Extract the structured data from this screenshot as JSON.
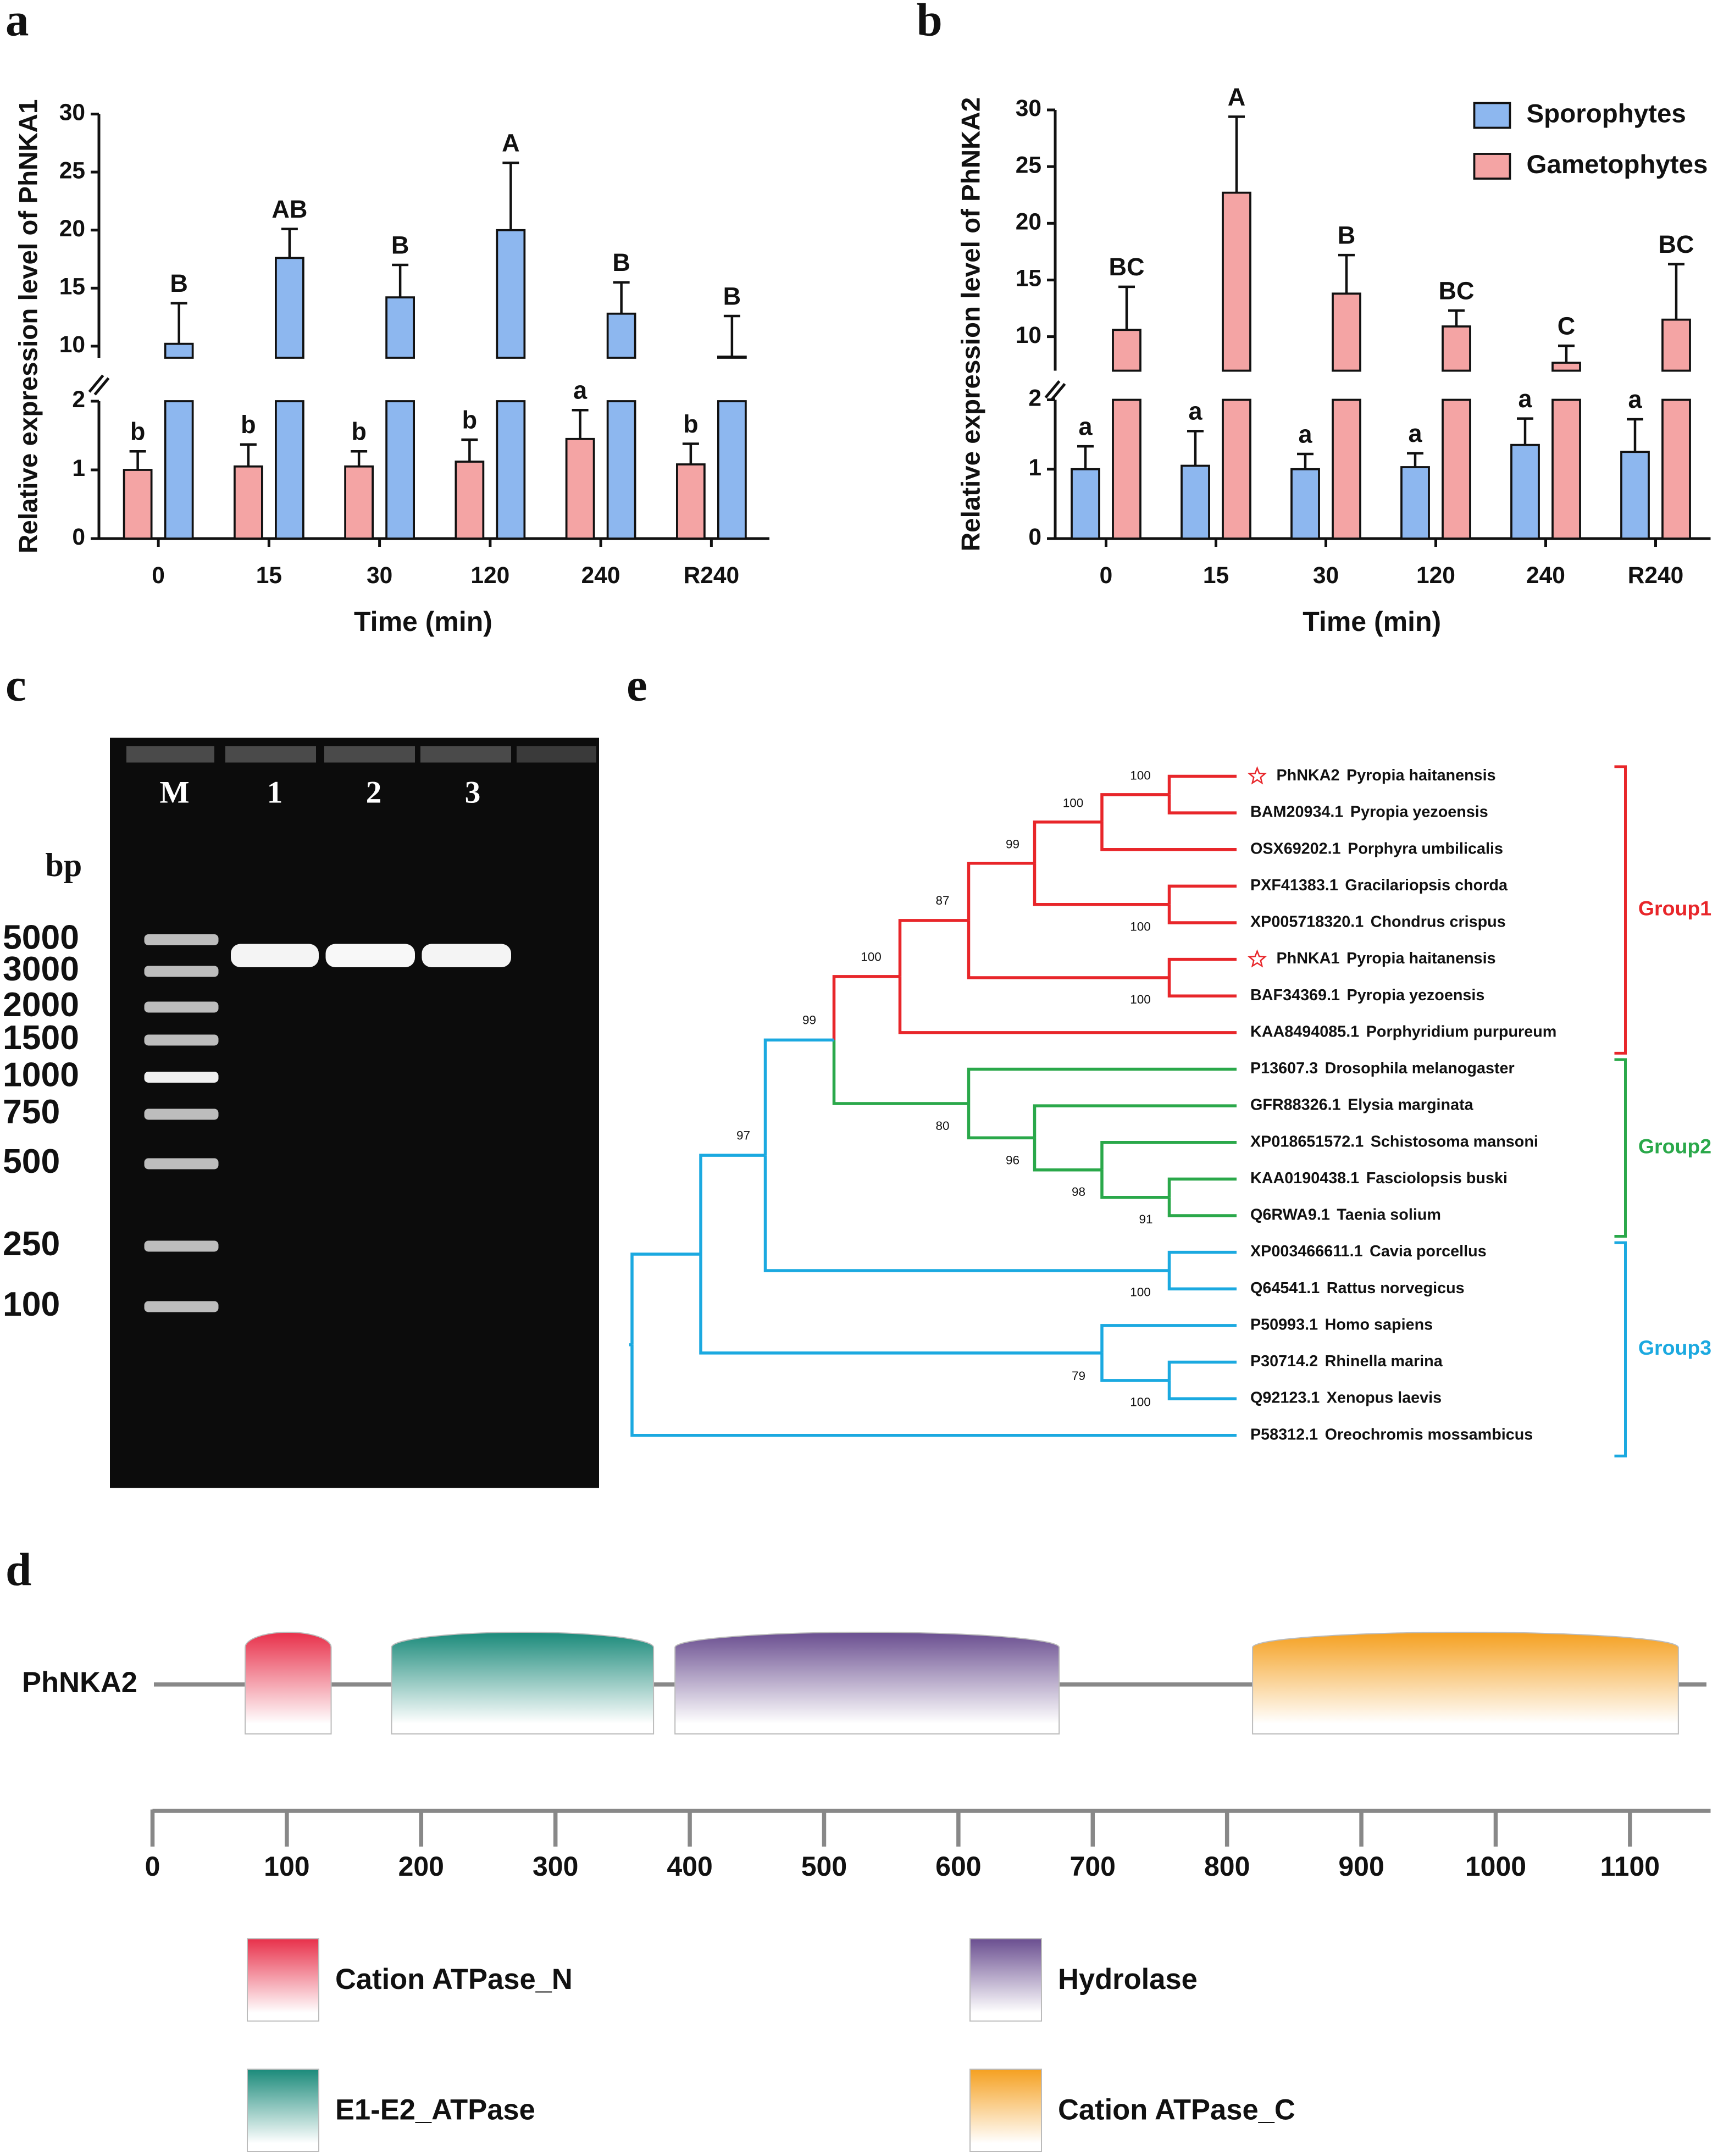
{
  "chart_data": [
    {
      "type": "bar",
      "panel_label": "a",
      "ylabel": "Relative expression level of PhNKA1",
      "xlabel": "Time (min)",
      "categories": [
        "0",
        "15",
        "30",
        "120",
        "240",
        "R240"
      ],
      "ylim": [
        0,
        2
      ],
      "yticks": [
        0,
        1,
        2
      ],
      "ylim_upper": [
        9,
        30
      ],
      "yticks_upper": [
        10,
        15,
        20,
        25,
        30
      ],
      "series": [
        {
          "color": "#f4a4a4",
          "values": [
            1.0,
            1.05,
            1.05,
            1.12,
            1.45,
            1.08
          ],
          "errors": [
            0.27,
            0.32,
            0.22,
            0.32,
            0.42,
            0.3
          ],
          "letters": [
            "b",
            "b",
            "b",
            "b",
            "a",
            "b"
          ]
        },
        {
          "color": "#8db7ef",
          "values": [
            10.2,
            17.6,
            14.2,
            20.0,
            12.8,
            9.1
          ],
          "errors": [
            3.5,
            2.5,
            2.8,
            5.8,
            2.7,
            3.5
          ],
          "letters": [
            "B",
            "AB",
            "B",
            "A",
            "B",
            "B"
          ]
        }
      ]
    },
    {
      "type": "bar",
      "panel_label": "b",
      "ylabel": "Relative expression level of PhNKA2",
      "xlabel": "Time (min)",
      "categories": [
        "0",
        "15",
        "30",
        "120",
        "240",
        "R240"
      ],
      "ylim": [
        0,
        2
      ],
      "yticks": [
        0,
        1,
        2
      ],
      "ylim_upper": [
        7,
        30
      ],
      "yticks_upper": [
        10,
        15,
        20,
        25,
        30
      ],
      "legend": "upper right",
      "series": [
        {
          "name": "Sporophytes",
          "color": "#8db7ef",
          "values": [
            1.0,
            1.05,
            1.0,
            1.03,
            1.35,
            1.25
          ],
          "errors": [
            0.33,
            0.5,
            0.22,
            0.2,
            0.38,
            0.47
          ],
          "letters": [
            "a",
            "a",
            "a",
            "a",
            "a",
            "a"
          ]
        },
        {
          "name": "Gametophytes",
          "color": "#f4a4a4",
          "values": [
            10.6,
            22.7,
            13.8,
            10.9,
            7.7,
            11.5
          ],
          "errors": [
            3.8,
            6.7,
            3.4,
            1.4,
            1.5,
            4.9
          ],
          "letters": [
            "BC",
            "A",
            "B",
            "BC",
            "C",
            "BC"
          ]
        }
      ]
    }
  ],
  "gel": {
    "panel_label": "c",
    "unit": "bp",
    "lanes": [
      "M",
      "1",
      "2",
      "3"
    ],
    "markers": [
      5000,
      3000,
      2000,
      1500,
      1000,
      750,
      500,
      250,
      100
    ]
  },
  "domains": {
    "panel_label": "d",
    "protein": "PhNKA2",
    "xlim": [
      0,
      1160
    ],
    "xticks": [
      0,
      100,
      200,
      300,
      400,
      500,
      600,
      700,
      800,
      900,
      1000,
      1100
    ],
    "items": [
      {
        "name": "Cation ATPase_N",
        "start": 69,
        "end": 133,
        "color": "#e8304a"
      },
      {
        "name": "E1-E2_ATPase",
        "start": 178,
        "end": 373,
        "color": "#1a8a7a"
      },
      {
        "name": "Hydrolase",
        "start": 389,
        "end": 675,
        "color": "#6a4e90"
      },
      {
        "name": "Cation ATPase_C",
        "start": 819,
        "end": 1136,
        "color": "#f5a020"
      }
    ]
  },
  "tree": {
    "panel_label": "e",
    "taxa": [
      {
        "id": "PhNKA2",
        "species": "Pyropia haitanensis"
      },
      {
        "id": "BAM20934.1",
        "species": "Pyropia yezoensis"
      },
      {
        "id": "OSX69202.1",
        "species": "Porphyra umbilicalis"
      },
      {
        "id": "PXF41383.1",
        "species": "Gracilariopsis chorda"
      },
      {
        "id": "XP005718320.1",
        "species": "Chondrus crispus"
      },
      {
        "id": "PhNKA1",
        "species": "Pyropia haitanensis"
      },
      {
        "id": "BAF34369.1",
        "species": "Pyropia yezoensis"
      },
      {
        "id": "KAA8494085.1",
        "species": "Porphyridium purpureum"
      },
      {
        "id": "P13607.3",
        "species": "Drosophila melanogaster"
      },
      {
        "id": "GFR88326.1",
        "species": "Elysia marginata"
      },
      {
        "id": "XP018651572.1",
        "species": "Schistosoma mansoni"
      },
      {
        "id": "KAA0190438.1",
        "species": "Fasciolopsis buski"
      },
      {
        "id": "Q6RWA9.1",
        "species": "Taenia solium"
      },
      {
        "id": "XP003466611.1",
        "species": "Cavia porcellus"
      },
      {
        "id": "Q64541.1",
        "species": "Rattus norvegicus"
      },
      {
        "id": "P50993.1",
        "species": "Homo sapiens"
      },
      {
        "id": "P30714.2",
        "species": "Rhinella marina"
      },
      {
        "id": "Q92123.1",
        "species": "Xenopus laevis"
      },
      {
        "id": "P58312.1",
        "species": "Oreochromis mossambicus"
      }
    ],
    "bootstrap": [
      100,
      100,
      100,
      99,
      100,
      87,
      100,
      91,
      98,
      96,
      80,
      99,
      100,
      97,
      100,
      79
    ],
    "groups": [
      {
        "name": "Group1",
        "color": "#e8262a"
      },
      {
        "name": "Group2",
        "color": "#2aa84a"
      },
      {
        "name": "Group3",
        "color": "#1ba9e0"
      }
    ]
  }
}
